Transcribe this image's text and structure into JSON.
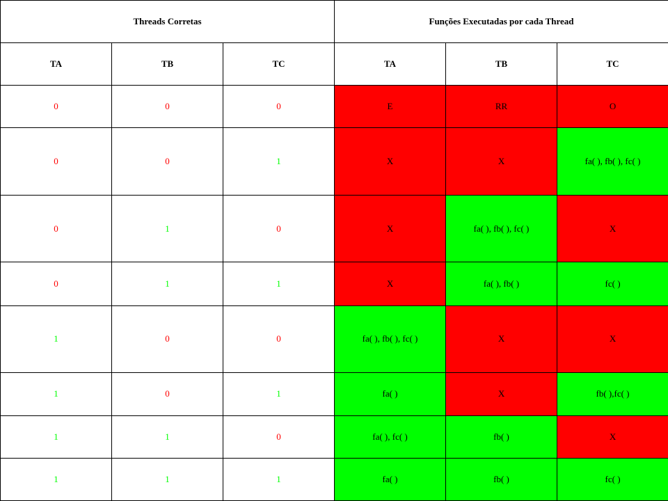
{
  "colors": {
    "red": "#ff0000",
    "green": "#00ff00",
    "border": "#000000",
    "background": "#ffffff"
  },
  "headers": {
    "group_left": "Threads Corretas",
    "group_right": "Funções Executadas por cada Thread",
    "left": [
      "TA",
      "TB",
      "TC"
    ],
    "right": [
      "TA",
      "TB",
      "TC"
    ]
  },
  "rows": [
    {
      "flags": [
        "0",
        "0",
        "0"
      ],
      "funcs": [
        {
          "text": "E",
          "ok": false
        },
        {
          "text": "RR",
          "ok": false
        },
        {
          "text": "O",
          "ok": false
        }
      ]
    },
    {
      "flags": [
        "0",
        "0",
        "1"
      ],
      "funcs": [
        {
          "text": "X",
          "ok": false
        },
        {
          "text": "X",
          "ok": false
        },
        {
          "text": "fa( ), fb( ), fc( )",
          "ok": true
        }
      ]
    },
    {
      "flags": [
        "0",
        "1",
        "0"
      ],
      "funcs": [
        {
          "text": "X",
          "ok": false
        },
        {
          "text": "fa( ), fb( ), fc( )",
          "ok": true
        },
        {
          "text": "X",
          "ok": false
        }
      ]
    },
    {
      "flags": [
        "0",
        "1",
        "1"
      ],
      "funcs": [
        {
          "text": "X",
          "ok": false
        },
        {
          "text": "fa( ), fb( )",
          "ok": true
        },
        {
          "text": "fc( )",
          "ok": true
        }
      ]
    },
    {
      "flags": [
        "1",
        "0",
        "0"
      ],
      "funcs": [
        {
          "text": "fa( ), fb( ), fc( )",
          "ok": true
        },
        {
          "text": "X",
          "ok": false
        },
        {
          "text": "X",
          "ok": false
        }
      ]
    },
    {
      "flags": [
        "1",
        "0",
        "1"
      ],
      "funcs": [
        {
          "text": "fa( )",
          "ok": true
        },
        {
          "text": "X",
          "ok": false
        },
        {
          "text": "fb( ),fc( )",
          "ok": true
        }
      ]
    },
    {
      "flags": [
        "1",
        "1",
        "0"
      ],
      "funcs": [
        {
          "text": "fa( ), fc( )",
          "ok": true
        },
        {
          "text": "fb( )",
          "ok": true
        },
        {
          "text": "X",
          "ok": false
        }
      ]
    },
    {
      "flags": [
        "1",
        "1",
        "1"
      ],
      "funcs": [
        {
          "text": "fa( )",
          "ok": true
        },
        {
          "text": "fb( )",
          "ok": true
        },
        {
          "text": "fc( )",
          "ok": true
        }
      ]
    }
  ]
}
